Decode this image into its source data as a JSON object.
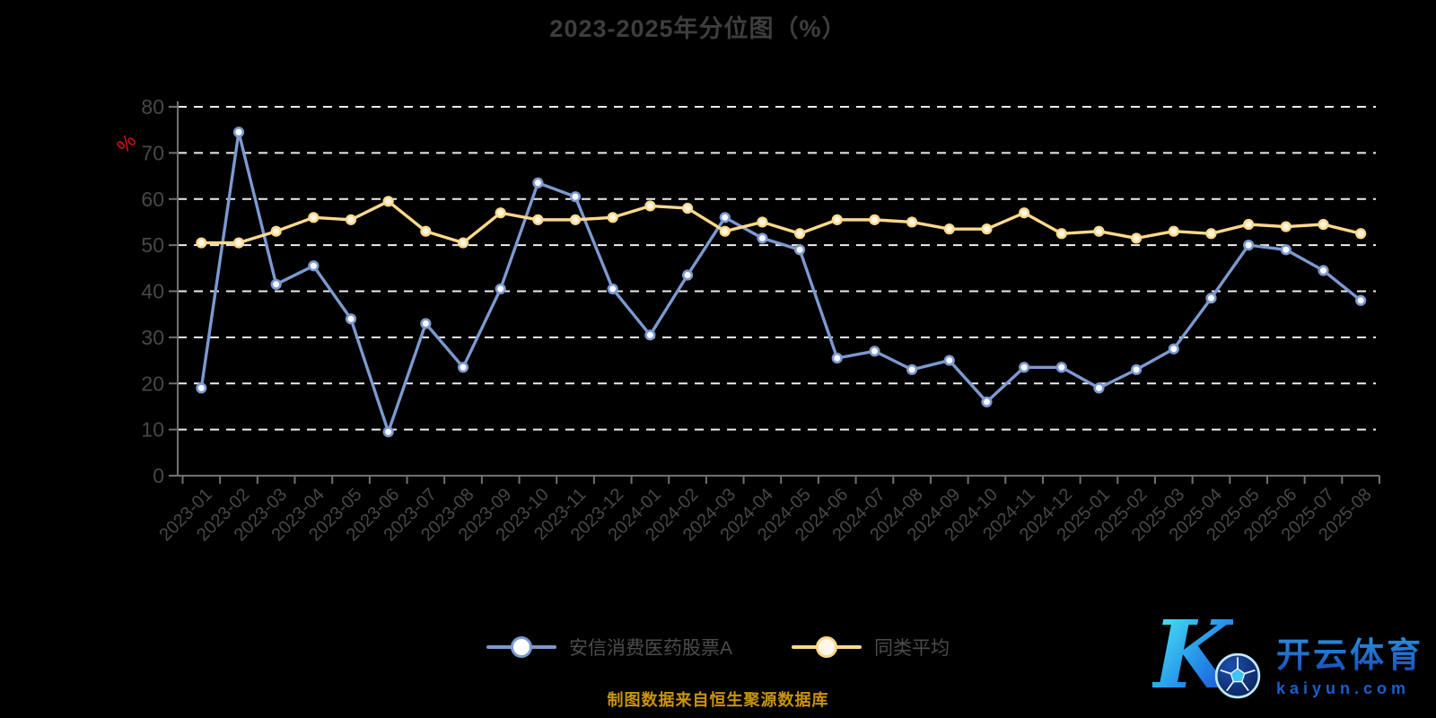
{
  "header": {
    "title": "2023-2025年分位图（%）"
  },
  "chart_data": {
    "type": "line",
    "title": "2023-2025年分位图（%）",
    "ylabel": "%",
    "ylim": [
      0,
      80
    ],
    "ytick_step": 10,
    "grid": "horizontal-dashed-white",
    "legend_position": "bottom",
    "categories": [
      "2023-01",
      "2023-02",
      "2023-03",
      "2023-04",
      "2023-05",
      "2023-06",
      "2023-07",
      "2023-08",
      "2023-09",
      "2023-10",
      "2023-11",
      "2023-12",
      "2024-01",
      "2024-02",
      "2024-03",
      "2024-04",
      "2024-05",
      "2024-06",
      "2024-07",
      "2024-08",
      "2024-09",
      "2024-10",
      "2024-11",
      "2024-12",
      "2025-01",
      "2025-02",
      "2025-03",
      "2025-04",
      "2025-05",
      "2025-06",
      "2025-07",
      "2025-08"
    ],
    "series": [
      {
        "name": "安信消费医药股票A",
        "color": "#7c99d0",
        "marker_fill": "#ffffff",
        "values": [
          19,
          74.5,
          41.5,
          45.5,
          34,
          9.5,
          33,
          23.5,
          40.5,
          63.5,
          60.5,
          40.5,
          30.5,
          43.5,
          56,
          51.5,
          49,
          25.5,
          27,
          23,
          25,
          16,
          23.5,
          23.5,
          19,
          23,
          27.5,
          38.5,
          50,
          49,
          44.5,
          38
        ]
      },
      {
        "name": "同类平均",
        "color": "#ffd98a",
        "marker_fill": "#fff8ea",
        "values": [
          50.5,
          50.5,
          53,
          56,
          55.5,
          59.5,
          53,
          50.5,
          57,
          55.5,
          55.5,
          56,
          58.5,
          58,
          53,
          55,
          52.5,
          55.5,
          55.5,
          55,
          53.5,
          53.5,
          57,
          52.5,
          53,
          51.5,
          53,
          52.5,
          54.5,
          54,
          54.5,
          52.5
        ]
      }
    ]
  },
  "colors": {
    "background": "#000000",
    "title": "#3e3e3e",
    "axis_line": "#717171",
    "tick_label": "#484848",
    "gridline": "#ededed",
    "percent_label": "#e01212",
    "legend_text": "#4c4c4c",
    "source_text": "#c8940c"
  },
  "footer": {
    "source_note": "制图数据来自恒生聚源数据库"
  },
  "watermark": {
    "letter": "K",
    "title": "开云体育",
    "domain": "kaiyun.com",
    "icon": "soccer-ball"
  }
}
